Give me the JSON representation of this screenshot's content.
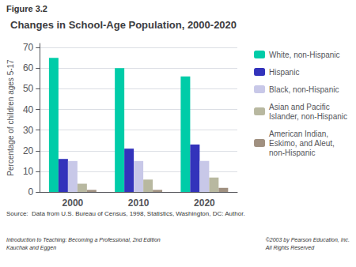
{
  "chart_data": {
    "type": "bar",
    "title": "Changes in School-Age Population, 2000-2020",
    "ylabel": "Percentage of children ages 5-17",
    "annotations": [
      "Figure 3.2",
      "Source:  Data from U.S. Bureau of Census, 1998, Statistics, Washington, DC: Author.",
      "Introduction to Teaching: Becoming a Professional, 2nd Edition\nKauchak and Eggen",
      "©2003 by Pearson Education, Inc.\nAll Rights Reserved"
    ],
    "categories": [
      "2000",
      "2010",
      "2020"
    ],
    "series": [
      {
        "name": "White, non-Hispanic",
        "color": "#00CCA8",
        "values": [
          65,
          60,
          56
        ]
      },
      {
        "name": "Hispanic",
        "color": "#3333BB",
        "values": [
          16,
          21,
          23
        ]
      },
      {
        "name": "Black, non-Hispanic",
        "color": "#C8C8E8",
        "values": [
          15,
          15,
          15
        ]
      },
      {
        "name": "Asian and Pacific\nIslander, non-Hispanic",
        "color": "#B8B8A0",
        "values": [
          4,
          6,
          7
        ]
      },
      {
        "name": "American Indian,\nEskimo, and Aleut,\nnon-Hispanic",
        "color": "#A09080",
        "values": [
          1,
          1,
          2
        ]
      }
    ],
    "ylim": [
      0,
      72
    ],
    "yticks": [
      0,
      10,
      20,
      30,
      40,
      50,
      60,
      70
    ],
    "grid": true,
    "legend": "right"
  }
}
